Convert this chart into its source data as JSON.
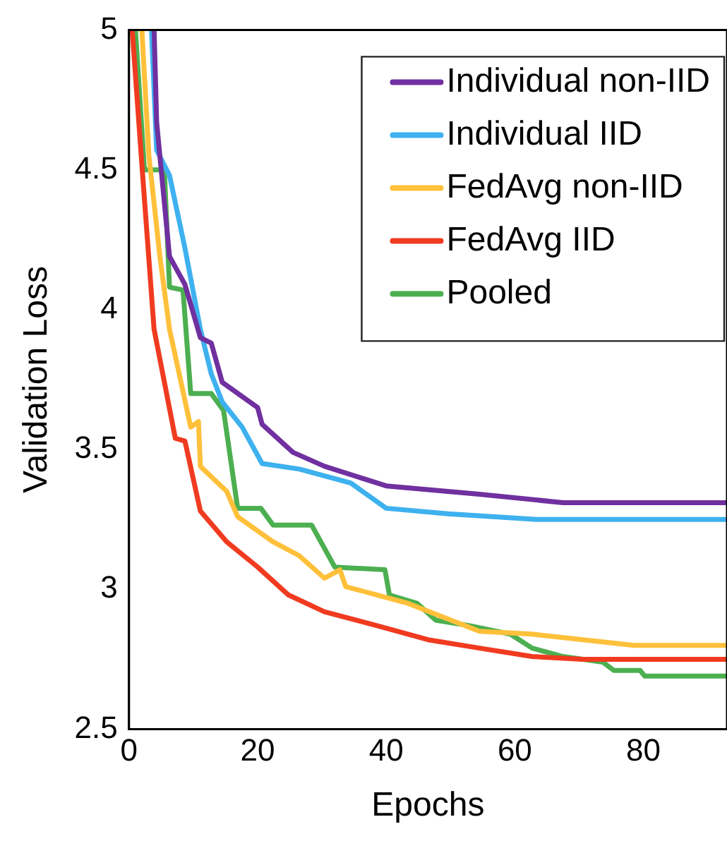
{
  "chart_data": {
    "type": "line",
    "xlabel": "Epochs",
    "ylabel": "Validation Loss",
    "xlim": [
      0,
      93
    ],
    "xticks": [
      0,
      20,
      40,
      60,
      80
    ],
    "ylim": [
      2.5,
      5
    ],
    "yticks": [
      2.5,
      3,
      3.5,
      4,
      4.5,
      5
    ],
    "grid": false,
    "legend": "top right",
    "marker": "none",
    "line_style": "solid",
    "series": [
      {
        "name": "Individual non-IID",
        "color": "#7030a0",
        "x": [
          3.9,
          4.3,
          6.3,
          8.7,
          11.1,
          12.8,
          14.5,
          20,
          20.7,
          25.5,
          30.4,
          40,
          54.5,
          67.5,
          93
        ],
        "values": [
          5,
          4.67,
          4.19,
          4.09,
          3.9,
          3.88,
          3.74,
          3.65,
          3.59,
          3.49,
          3.44,
          3.37,
          3.34,
          3.31,
          3.31
        ]
      },
      {
        "name": "Individual IID",
        "color": "#3eb1ef",
        "x": [
          3.5,
          4.3,
          6.3,
          8.7,
          11.1,
          12.8,
          14.5,
          17.6,
          20.7,
          26.5,
          34.5,
          40,
          49.6,
          63.4,
          93
        ],
        "values": [
          5,
          4.57,
          4.48,
          4.22,
          3.93,
          3.77,
          3.67,
          3.58,
          3.45,
          3.43,
          3.38,
          3.29,
          3.27,
          3.25,
          3.25
        ]
      },
      {
        "name": "FedAvg non-IID",
        "color": "#ffc03a",
        "x": [
          2,
          3.1,
          4.8,
          6.3,
          9.6,
          10.8,
          11.1,
          15.2,
          16.9,
          22.4,
          26.5,
          30.4,
          32.8,
          33.7,
          38.6,
          43.4,
          54.5,
          62.7,
          70.6,
          78.6,
          93
        ],
        "values": [
          5,
          4.55,
          4.19,
          3.93,
          3.58,
          3.6,
          3.44,
          3.35,
          3.26,
          3.17,
          3.12,
          3.04,
          3.07,
          3.01,
          2.98,
          2.95,
          2.85,
          2.84,
          2.82,
          2.8,
          2.8
        ]
      },
      {
        "name": "FedAvg IID",
        "color": "#f03b20",
        "x": [
          0.5,
          1.9,
          3.9,
          7.2,
          8.7,
          11.1,
          15.2,
          20,
          24.8,
          30.4,
          38.6,
          46.5,
          54.5,
          62.7,
          70.6,
          93
        ],
        "values": [
          5,
          4.55,
          3.93,
          3.54,
          3.53,
          3.28,
          3.17,
          3.08,
          2.98,
          2.92,
          2.87,
          2.82,
          2.79,
          2.76,
          2.75,
          2.75
        ]
      },
      {
        "name": "Pooled",
        "color": "#4caf50",
        "x": [
          1,
          2.4,
          5.5,
          6.3,
          8.4,
          9.6,
          12.8,
          14.7,
          16.9,
          20.5,
          22.4,
          28.4,
          32,
          39.8,
          40.5,
          44.8,
          47.7,
          53,
          59.3,
          62.7,
          67.5,
          73.7,
          75.4,
          79.5,
          80.2,
          93
        ],
        "values": [
          5,
          4.5,
          4.5,
          4.08,
          4.07,
          3.7,
          3.7,
          3.64,
          3.29,
          3.29,
          3.23,
          3.23,
          3.08,
          3.07,
          2.98,
          2.95,
          2.89,
          2.87,
          2.84,
          2.79,
          2.76,
          2.74,
          2.71,
          2.71,
          2.69,
          2.69
        ]
      }
    ]
  }
}
